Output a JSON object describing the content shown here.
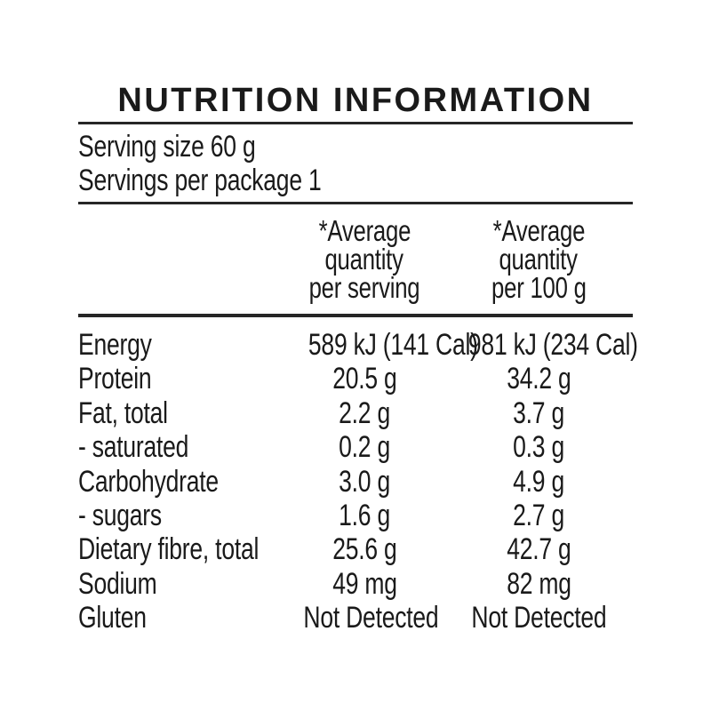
{
  "title": "NUTRITION INFORMATION",
  "serving_size": "Serving size 60 g",
  "servings_per_package": "Servings per package 1",
  "columns": [
    {
      "lines": [
        "*Average",
        "quantity",
        "per serving"
      ]
    },
    {
      "lines": [
        "*Average",
        "quantity",
        "per 100 g"
      ]
    }
  ],
  "rows": [
    {
      "label": "Energy",
      "per_serving": "589 kJ (141 Cal)",
      "per_100g": "981 kJ (234 Cal)"
    },
    {
      "label": "Protein",
      "per_serving": "20.5 g",
      "per_100g": "34.2 g"
    },
    {
      "label": "Fat, total",
      "per_serving": "2.2 g",
      "per_100g": "3.7 g"
    },
    {
      "label": "- saturated",
      "per_serving": "0.2 g",
      "per_100g": "0.3 g"
    },
    {
      "label": "Carbohydrate",
      "per_serving": "3.0 g",
      "per_100g": "4.9 g"
    },
    {
      "label": "- sugars",
      "per_serving": "1.6 g",
      "per_100g": "2.7 g"
    },
    {
      "label": "Dietary fibre, total",
      "per_serving": "25.6 g",
      "per_100g": "42.7 g"
    },
    {
      "label": "Sodium",
      "per_serving": "49 mg",
      "per_100g": "82 mg"
    },
    {
      "label": "Gluten",
      "per_serving": "Not Detected",
      "per_100g": "Not Detected"
    }
  ],
  "colors": {
    "text": "#1a1a1a",
    "rule": "#262626",
    "background": "#ffffff"
  }
}
